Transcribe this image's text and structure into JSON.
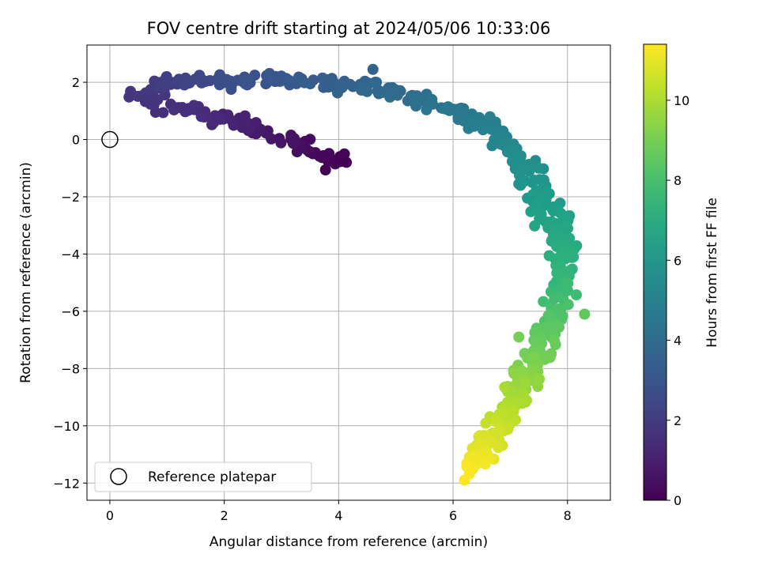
{
  "chart_data": {
    "type": "scatter",
    "title": "FOV centre drift starting at 2024/05/06 10:33:06",
    "xlabel": "Angular distance from reference (arcmin)",
    "ylabel": "Rotation from reference (arcmin)",
    "xlim": [
      -0.4,
      8.75
    ],
    "ylim": [
      -12.6,
      3.3
    ],
    "xticks": [
      0,
      2,
      4,
      6,
      8
    ],
    "yticks": [
      -12,
      -10,
      -8,
      -6,
      -4,
      -2,
      0,
      2
    ],
    "grid": true,
    "colormap": "viridis",
    "colorbar": {
      "label": "Hours from first FF file",
      "range": [
        0,
        11.4
      ],
      "ticks": [
        0,
        2,
        4,
        6,
        8,
        10
      ]
    },
    "legend": {
      "placement": "lower-left",
      "entries": [
        {
          "label": "Reference platepar",
          "marker": "open-circle"
        }
      ]
    },
    "reference_point": {
      "x": 0,
      "y": 0
    },
    "path": [
      {
        "x": 3.95,
        "y": -0.8,
        "t": 0.0
      },
      {
        "x": 3.5,
        "y": -0.35,
        "t": 0.3
      },
      {
        "x": 3.0,
        "y": 0.05,
        "t": 0.6
      },
      {
        "x": 2.5,
        "y": 0.45,
        "t": 0.9
      },
      {
        "x": 2.0,
        "y": 0.75,
        "t": 1.2
      },
      {
        "x": 1.5,
        "y": 1.0,
        "t": 1.45
      },
      {
        "x": 0.9,
        "y": 1.25,
        "t": 1.65
      },
      {
        "x": 0.55,
        "y": 1.6,
        "t": 1.8
      },
      {
        "x": 0.9,
        "y": 2.05,
        "t": 2.0
      },
      {
        "x": 1.6,
        "y": 2.0,
        "t": 2.4
      },
      {
        "x": 2.3,
        "y": 2.0,
        "t": 2.8
      },
      {
        "x": 3.0,
        "y": 2.1,
        "t": 3.1
      },
      {
        "x": 3.8,
        "y": 2.0,
        "t": 3.4
      },
      {
        "x": 4.5,
        "y": 1.9,
        "t": 3.7
      },
      {
        "x": 5.1,
        "y": 1.6,
        "t": 4.0
      },
      {
        "x": 5.6,
        "y": 1.3,
        "t": 4.3
      },
      {
        "x": 6.1,
        "y": 0.9,
        "t": 4.6
      },
      {
        "x": 6.6,
        "y": 0.45,
        "t": 4.9
      },
      {
        "x": 7.0,
        "y": -0.2,
        "t": 5.3
      },
      {
        "x": 7.35,
        "y": -1.2,
        "t": 5.8
      },
      {
        "x": 7.7,
        "y": -2.5,
        "t": 6.4
      },
      {
        "x": 7.95,
        "y": -3.8,
        "t": 7.0
      },
      {
        "x": 7.9,
        "y": -5.0,
        "t": 7.6
      },
      {
        "x": 7.8,
        "y": -6.2,
        "t": 8.2
      },
      {
        "x": 7.55,
        "y": -7.3,
        "t": 8.8
      },
      {
        "x": 7.2,
        "y": -8.5,
        "t": 9.5
      },
      {
        "x": 6.95,
        "y": -9.6,
        "t": 10.2
      },
      {
        "x": 6.6,
        "y": -10.6,
        "t": 10.8
      },
      {
        "x": 6.25,
        "y": -11.6,
        "t": 11.4
      }
    ],
    "n_points": 600,
    "spread": {
      "x": 0.22,
      "y": 0.22
    },
    "outliers": [
      {
        "x": 4.1,
        "y": -0.5,
        "t": 0.1
      },
      {
        "x": 0.8,
        "y": 0.95,
        "t": 1.4
      },
      {
        "x": 4.6,
        "y": 2.45,
        "t": 3.6
      },
      {
        "x": 7.15,
        "y": -1.55,
        "t": 5.9
      },
      {
        "x": 8.3,
        "y": -6.1,
        "t": 8.6
      },
      {
        "x": 7.15,
        "y": -6.9,
        "t": 9.0
      },
      {
        "x": 6.9,
        "y": -8.65,
        "t": 9.9
      },
      {
        "x": 6.2,
        "y": -11.9,
        "t": 11.4
      }
    ]
  }
}
